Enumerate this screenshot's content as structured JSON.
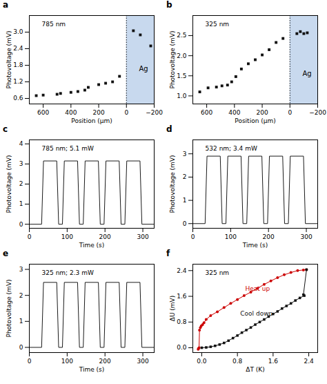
{
  "chart_data": [
    {
      "type": "scatter",
      "title": "a",
      "x_label": "Position (μm)",
      "y_label": "Photovoltage (mV)",
      "x": [
        650,
        600,
        500,
        475,
        400,
        350,
        300,
        275,
        200,
        150,
        100,
        50,
        -50,
        -100,
        -175
      ],
      "values": [
        0.7,
        0.72,
        0.75,
        0.78,
        0.82,
        0.85,
        0.9,
        1.0,
        1.1,
        1.15,
        1.2,
        1.4,
        3.05,
        2.9,
        2.5
      ],
      "color": "#111111",
      "marker": "square",
      "xlim": [
        700,
        -200
      ],
      "xticks": [
        600,
        400,
        200,
        0,
        {
          "value": -200,
          "label": "−200"
        }
      ],
      "ylim": [
        0.4,
        3.6
      ],
      "yticks": [
        0.6,
        1.2,
        1.8,
        2.4,
        {
          "value": 3.0,
          "label": "3.0"
        }
      ],
      "shaded_region": {
        "x": [
          0,
          -220
        ],
        "color": "#c8d9ee"
      },
      "reference_line": {
        "x": 0,
        "color": "#000000",
        "line_style": "dotted"
      },
      "annotations": [
        {
          "text": "785 nm"
        },
        {
          "text": "Ag",
          "x": -90,
          "y": 1.6
        }
      ]
    },
    {
      "type": "scatter",
      "title": "b",
      "x_label": "Position (μm)",
      "y_label": "Photovoltage (mV)",
      "x": [
        650,
        590,
        530,
        490,
        450,
        420,
        390,
        350,
        300,
        250,
        200,
        150,
        100,
        50,
        -50,
        -75,
        -100,
        -125
      ],
      "values": [
        1.1,
        1.2,
        1.22,
        1.25,
        1.27,
        1.35,
        1.48,
        1.67,
        1.8,
        1.9,
        2.02,
        2.15,
        2.33,
        2.43,
        2.55,
        2.6,
        2.55,
        2.57
      ],
      "color": "#111111",
      "marker": "square",
      "xlim": [
        700,
        -200
      ],
      "xticks": [
        600,
        400,
        200,
        0,
        {
          "value": -200,
          "label": "−200"
        }
      ],
      "ylim": [
        0.8,
        3.0
      ],
      "yticks": [
        {
          "value": 1.0,
          "label": "1.0"
        },
        1.5,
        {
          "value": 2.0,
          "label": "2.0"
        },
        2.5
      ],
      "shaded_region": {
        "x": [
          0,
          -220
        ],
        "color": "#c8d9ee"
      },
      "reference_line": {
        "x": 0,
        "color": "#000000",
        "line_style": "dotted"
      },
      "annotations": [
        {
          "text": "325 nm"
        },
        {
          "text": "Ag",
          "x": -90,
          "y": 1.5
        }
      ]
    },
    {
      "type": "line",
      "title": "c",
      "x_label": "Time (s)",
      "y_label": "Photovoltage (mV)",
      "x": [
        0,
        32.5,
        37.5,
        72.5,
        77.5,
        87.5,
        92.5,
        127.5,
        132.5,
        142.5,
        147.5,
        182.5,
        187.5,
        197.5,
        202.5,
        237.5,
        242.5,
        252.5,
        257.5,
        292.5,
        297.5,
        330
      ],
      "values": [
        0.0,
        0.0,
        3.15,
        3.15,
        0.0,
        0.0,
        3.15,
        3.15,
        0.0,
        0.0,
        3.15,
        3.15,
        0.0,
        0.0,
        3.15,
        3.15,
        0.0,
        0.0,
        3.15,
        3.15,
        0.0,
        0.0
      ],
      "color": "#1a1a1a",
      "xlim": [
        0,
        330
      ],
      "xticks": [
        0,
        100,
        200,
        300
      ],
      "ylim": [
        -0.2,
        4.2
      ],
      "yticks": [
        0,
        1,
        2,
        3,
        4
      ],
      "annotations": [
        {
          "text": "785 nm; 5.1 mW"
        }
      ]
    },
    {
      "type": "line",
      "title": "d",
      "x_label": "Time (s)",
      "y_label": "Photovoltage (mV)",
      "x": [
        0,
        32.5,
        37.5,
        72.5,
        77.5,
        87.5,
        92.5,
        127.5,
        132.5,
        142.5,
        147.5,
        182.5,
        187.5,
        197.5,
        202.5,
        237.5,
        242.5,
        252.5,
        257.5,
        292.5,
        297.5,
        330
      ],
      "values": [
        0.0,
        0.0,
        2.9,
        2.9,
        0.0,
        0.0,
        2.9,
        2.9,
        0.0,
        0.0,
        2.9,
        2.9,
        0.0,
        0.0,
        2.9,
        2.9,
        0.0,
        0.0,
        2.9,
        2.9,
        0.0,
        0.0
      ],
      "color": "#1a1a1a",
      "xlim": [
        0,
        330
      ],
      "xticks": [
        0,
        100,
        200,
        300
      ],
      "ylim": [
        -0.2,
        3.6
      ],
      "yticks": [
        0,
        1,
        2,
        3
      ],
      "annotations": [
        {
          "text": "532 nm; 3.4 mW"
        }
      ]
    },
    {
      "type": "line",
      "title": "e",
      "x_label": "Time (s)",
      "y_label": "Photovoltage (mV)",
      "x": [
        0,
        32.5,
        37.5,
        72.5,
        77.5,
        87.5,
        92.5,
        127.5,
        132.5,
        142.5,
        147.5,
        182.5,
        187.5,
        197.5,
        202.5,
        237.5,
        242.5,
        252.5,
        257.5,
        292.5,
        297.5,
        330
      ],
      "values": [
        0.0,
        0.0,
        2.5,
        2.5,
        0.0,
        0.0,
        2.5,
        2.5,
        0.0,
        0.0,
        2.5,
        2.5,
        0.0,
        0.0,
        2.5,
        2.5,
        0.0,
        0.0,
        2.5,
        2.5,
        0.0,
        0.0
      ],
      "color": "#1a1a1a",
      "xlim": [
        0,
        330
      ],
      "xticks": [
        0,
        100,
        200,
        300
      ],
      "ylim": [
        -0.2,
        3.2
      ],
      "yticks": [
        0,
        1,
        2,
        3
      ],
      "annotations": [
        {
          "text": "325 nm; 2.3 mW"
        }
      ]
    },
    {
      "type": "line",
      "title": "f",
      "x_label": "ΔT (K)",
      "y_label": "ΔU (mV)",
      "series": [
        {
          "name": "Heat up",
          "color": "#cc0000",
          "marker": "circle",
          "x": [
            -0.08,
            -0.07,
            -0.06,
            -0.05,
            -0.03,
            -0.01,
            0.02,
            0.05,
            0.1,
            0.2,
            0.35,
            0.5,
            0.65,
            0.8,
            0.95,
            1.1,
            1.25,
            1.4,
            1.55,
            1.7,
            1.85,
            2.0,
            2.15,
            2.28,
            2.35
          ],
          "values": [
            -0.05,
            -0.02,
            0.0,
            0.55,
            0.63,
            0.68,
            0.72,
            0.78,
            0.88,
            1.0,
            1.12,
            1.25,
            1.38,
            1.5,
            1.62,
            1.73,
            1.85,
            1.97,
            2.08,
            2.18,
            2.27,
            2.34,
            2.4,
            2.42,
            2.43
          ]
        },
        {
          "name": "Cool down",
          "color": "#111111",
          "marker": "square",
          "x": [
            2.35,
            2.28,
            2.3,
            2.2,
            2.1,
            2.0,
            1.9,
            1.8,
            1.7,
            1.6,
            1.5,
            1.4,
            1.3,
            1.2,
            1.1,
            1.0,
            0.9,
            0.8,
            0.7,
            0.6,
            0.5,
            0.4,
            0.3,
            0.2,
            0.1,
            0.0
          ],
          "values": [
            2.43,
            1.65,
            1.62,
            1.55,
            1.47,
            1.38,
            1.3,
            1.22,
            1.13,
            1.05,
            0.97,
            0.88,
            0.8,
            0.72,
            0.63,
            0.55,
            0.47,
            0.38,
            0.3,
            0.22,
            0.15,
            0.1,
            0.06,
            0.03,
            0.01,
            0.0
          ]
        }
      ],
      "xlim": [
        -0.2,
        2.6
      ],
      "xticks": [
        {
          "value": 0.0,
          "label": "0.0"
        },
        0.8,
        1.6,
        2.4
      ],
      "ylim": [
        -0.15,
        2.6
      ],
      "yticks": [
        {
          "value": 0.0,
          "label": "0.0"
        },
        0.8,
        1.6,
        2.4
      ],
      "annotations": [
        {
          "text": "325 nm"
        }
      ]
    }
  ]
}
